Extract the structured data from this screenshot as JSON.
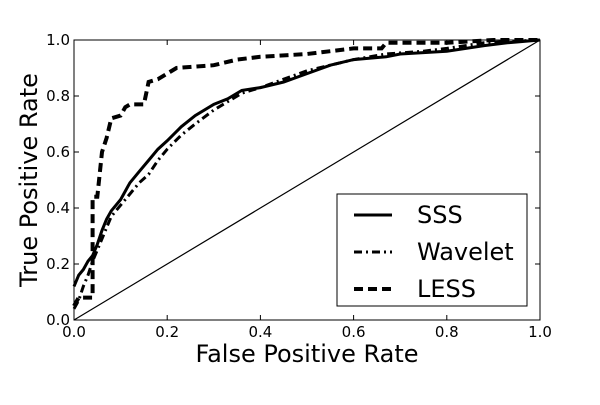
{
  "chart_data": {
    "type": "line",
    "xlabel": "False Positive Rate",
    "ylabel": "True Positive Rate",
    "xlim": [
      0.0,
      1.0
    ],
    "ylim": [
      0.0,
      1.0
    ],
    "xticks": [
      "0.0",
      "0.2",
      "0.4",
      "0.6",
      "0.8",
      "1.0"
    ],
    "yticks": [
      "0.0",
      "0.2",
      "0.4",
      "0.6",
      "0.8",
      "1.0"
    ],
    "grid": false,
    "legend_position": "bottom-right",
    "series": [
      {
        "name": "SSS",
        "style": "solid",
        "color": "#000000",
        "points": [
          [
            0.0,
            0.12
          ],
          [
            0.01,
            0.16
          ],
          [
            0.02,
            0.18
          ],
          [
            0.03,
            0.21
          ],
          [
            0.04,
            0.23
          ],
          [
            0.05,
            0.27
          ],
          [
            0.06,
            0.32
          ],
          [
            0.07,
            0.36
          ],
          [
            0.08,
            0.39
          ],
          [
            0.1,
            0.43
          ],
          [
            0.12,
            0.49
          ],
          [
            0.14,
            0.53
          ],
          [
            0.16,
            0.57
          ],
          [
            0.18,
            0.61
          ],
          [
            0.2,
            0.64
          ],
          [
            0.23,
            0.69
          ],
          [
            0.26,
            0.73
          ],
          [
            0.3,
            0.77
          ],
          [
            0.33,
            0.79
          ],
          [
            0.36,
            0.82
          ],
          [
            0.4,
            0.83
          ],
          [
            0.45,
            0.85
          ],
          [
            0.5,
            0.88
          ],
          [
            0.55,
            0.91
          ],
          [
            0.6,
            0.93
          ],
          [
            0.67,
            0.94
          ],
          [
            0.7,
            0.95
          ],
          [
            0.8,
            0.96
          ],
          [
            0.88,
            0.98
          ],
          [
            0.93,
            0.99
          ],
          [
            1.0,
            1.0
          ]
        ]
      },
      {
        "name": "Wavelet",
        "style": "dashdot",
        "color": "#000000",
        "points": [
          [
            0.0,
            0.04
          ],
          [
            0.01,
            0.07
          ],
          [
            0.02,
            0.12
          ],
          [
            0.03,
            0.16
          ],
          [
            0.04,
            0.21
          ],
          [
            0.05,
            0.25
          ],
          [
            0.06,
            0.29
          ],
          [
            0.07,
            0.33
          ],
          [
            0.08,
            0.37
          ],
          [
            0.1,
            0.41
          ],
          [
            0.12,
            0.45
          ],
          [
            0.14,
            0.49
          ],
          [
            0.16,
            0.52
          ],
          [
            0.18,
            0.57
          ],
          [
            0.2,
            0.61
          ],
          [
            0.23,
            0.66
          ],
          [
            0.26,
            0.7
          ],
          [
            0.3,
            0.75
          ],
          [
            0.33,
            0.78
          ],
          [
            0.36,
            0.81
          ],
          [
            0.4,
            0.83
          ],
          [
            0.45,
            0.86
          ],
          [
            0.5,
            0.89
          ],
          [
            0.55,
            0.91
          ],
          [
            0.6,
            0.93
          ],
          [
            0.67,
            0.95
          ],
          [
            0.75,
            0.96
          ],
          [
            0.8,
            0.97
          ],
          [
            0.88,
            0.99
          ],
          [
            1.0,
            1.0
          ]
        ]
      },
      {
        "name": "LESS",
        "style": "dashed",
        "color": "#000000",
        "points": [
          [
            0.0,
            0.05
          ],
          [
            0.01,
            0.08
          ],
          [
            0.04,
            0.08
          ],
          [
            0.04,
            0.44
          ],
          [
            0.05,
            0.44
          ],
          [
            0.06,
            0.6
          ],
          [
            0.07,
            0.65
          ],
          [
            0.08,
            0.72
          ],
          [
            0.1,
            0.73
          ],
          [
            0.11,
            0.76
          ],
          [
            0.12,
            0.77
          ],
          [
            0.15,
            0.77
          ],
          [
            0.16,
            0.85
          ],
          [
            0.18,
            0.86
          ],
          [
            0.22,
            0.9
          ],
          [
            0.3,
            0.91
          ],
          [
            0.35,
            0.93
          ],
          [
            0.4,
            0.94
          ],
          [
            0.5,
            0.95
          ],
          [
            0.6,
            0.97
          ],
          [
            0.66,
            0.97
          ],
          [
            0.67,
            0.99
          ],
          [
            0.8,
            0.99
          ],
          [
            0.9,
            1.0
          ],
          [
            1.0,
            1.0
          ]
        ]
      },
      {
        "name": "",
        "style": "solid-thin",
        "color": "#000000",
        "points": [
          [
            0.0,
            0.0
          ],
          [
            1.0,
            1.0
          ]
        ]
      }
    ]
  }
}
